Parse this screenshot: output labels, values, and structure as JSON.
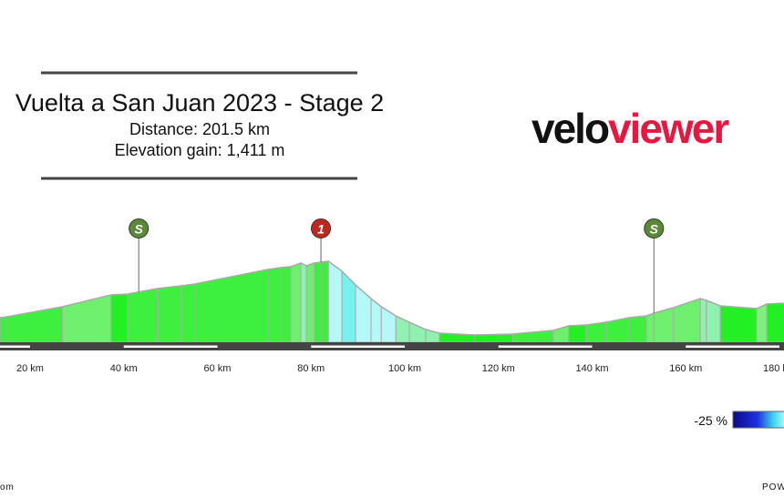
{
  "header": {
    "title": "Vuelta a San Juan 2023 - Stage 2",
    "distance": "Distance: 201.5 km",
    "elevation_gain": "Elevation gain: 1,411 m"
  },
  "logo": {
    "part1": "velo",
    "part2": "viewer",
    "color1": "#111111",
    "color2": "#e8173f"
  },
  "legend": {
    "min_label": "-25 %"
  },
  "footer": {
    "left": "om",
    "right": "POW"
  },
  "colors": {
    "road": "#444444",
    "outline": "#aaaaaa",
    "sprint": "#5a8a35",
    "kom": "#c0281f"
  },
  "chart_data": {
    "type": "area",
    "title": "Vuelta a San Juan 2023 - Stage 2",
    "xlabel": "",
    "ylabel": "",
    "x_unit": "km",
    "xlim": [
      13.5,
      181
    ],
    "x_ticks": [
      "20 km",
      "40 km",
      "60 km",
      "80 km",
      "100 km",
      "120 km",
      "140 km",
      "160 km",
      "180 km"
    ],
    "x_tick_values": [
      20,
      40,
      60,
      80,
      100,
      120,
      140,
      160,
      180
    ],
    "elevation_note": "relative elevation estimated (no elevation axis shown)",
    "profile": [
      [
        13.6,
        924
      ],
      [
        15.1,
        936
      ],
      [
        26.9,
        1068
      ],
      [
        37.3,
        1224
      ],
      [
        40.8,
        1236
      ],
      [
        47.2,
        1308
      ],
      [
        52.3,
        1344
      ],
      [
        55.2,
        1368
      ],
      [
        70.8,
        1560
      ],
      [
        73.5,
        1584
      ],
      [
        75.7,
        1596
      ],
      [
        77.8,
        1644
      ],
      [
        79.0,
        1608
      ],
      [
        80.7,
        1644
      ],
      [
        82.1,
        1656
      ],
      [
        83.7,
        1668
      ],
      [
        86.6,
        1536
      ],
      [
        89.5,
        1356
      ],
      [
        92.8,
        1176
      ],
      [
        95.0,
        1068
      ],
      [
        98.1,
        948
      ],
      [
        101.0,
        864
      ],
      [
        104.5,
        768
      ],
      [
        107.4,
        720
      ],
      [
        115.0,
        696
      ],
      [
        123.0,
        708
      ],
      [
        131.7,
        756
      ],
      [
        135.0,
        816
      ],
      [
        138.7,
        828
      ],
      [
        143.0,
        864
      ],
      [
        147.9,
        924
      ],
      [
        151.6,
        948
      ],
      [
        153.2,
        984
      ],
      [
        157.4,
        1056
      ],
      [
        163.1,
        1176
      ],
      [
        164.4,
        1152
      ],
      [
        167.4,
        1080
      ],
      [
        175.1,
        1044
      ],
      [
        177.3,
        1104
      ],
      [
        181.4,
        1116
      ]
    ],
    "markers": [
      {
        "type": "sprint",
        "label": "S",
        "km": 43.2
      },
      {
        "type": "kom",
        "label": "1",
        "km": 82.1
      },
      {
        "type": "sprint",
        "label": "S",
        "km": 153.2
      }
    ]
  }
}
